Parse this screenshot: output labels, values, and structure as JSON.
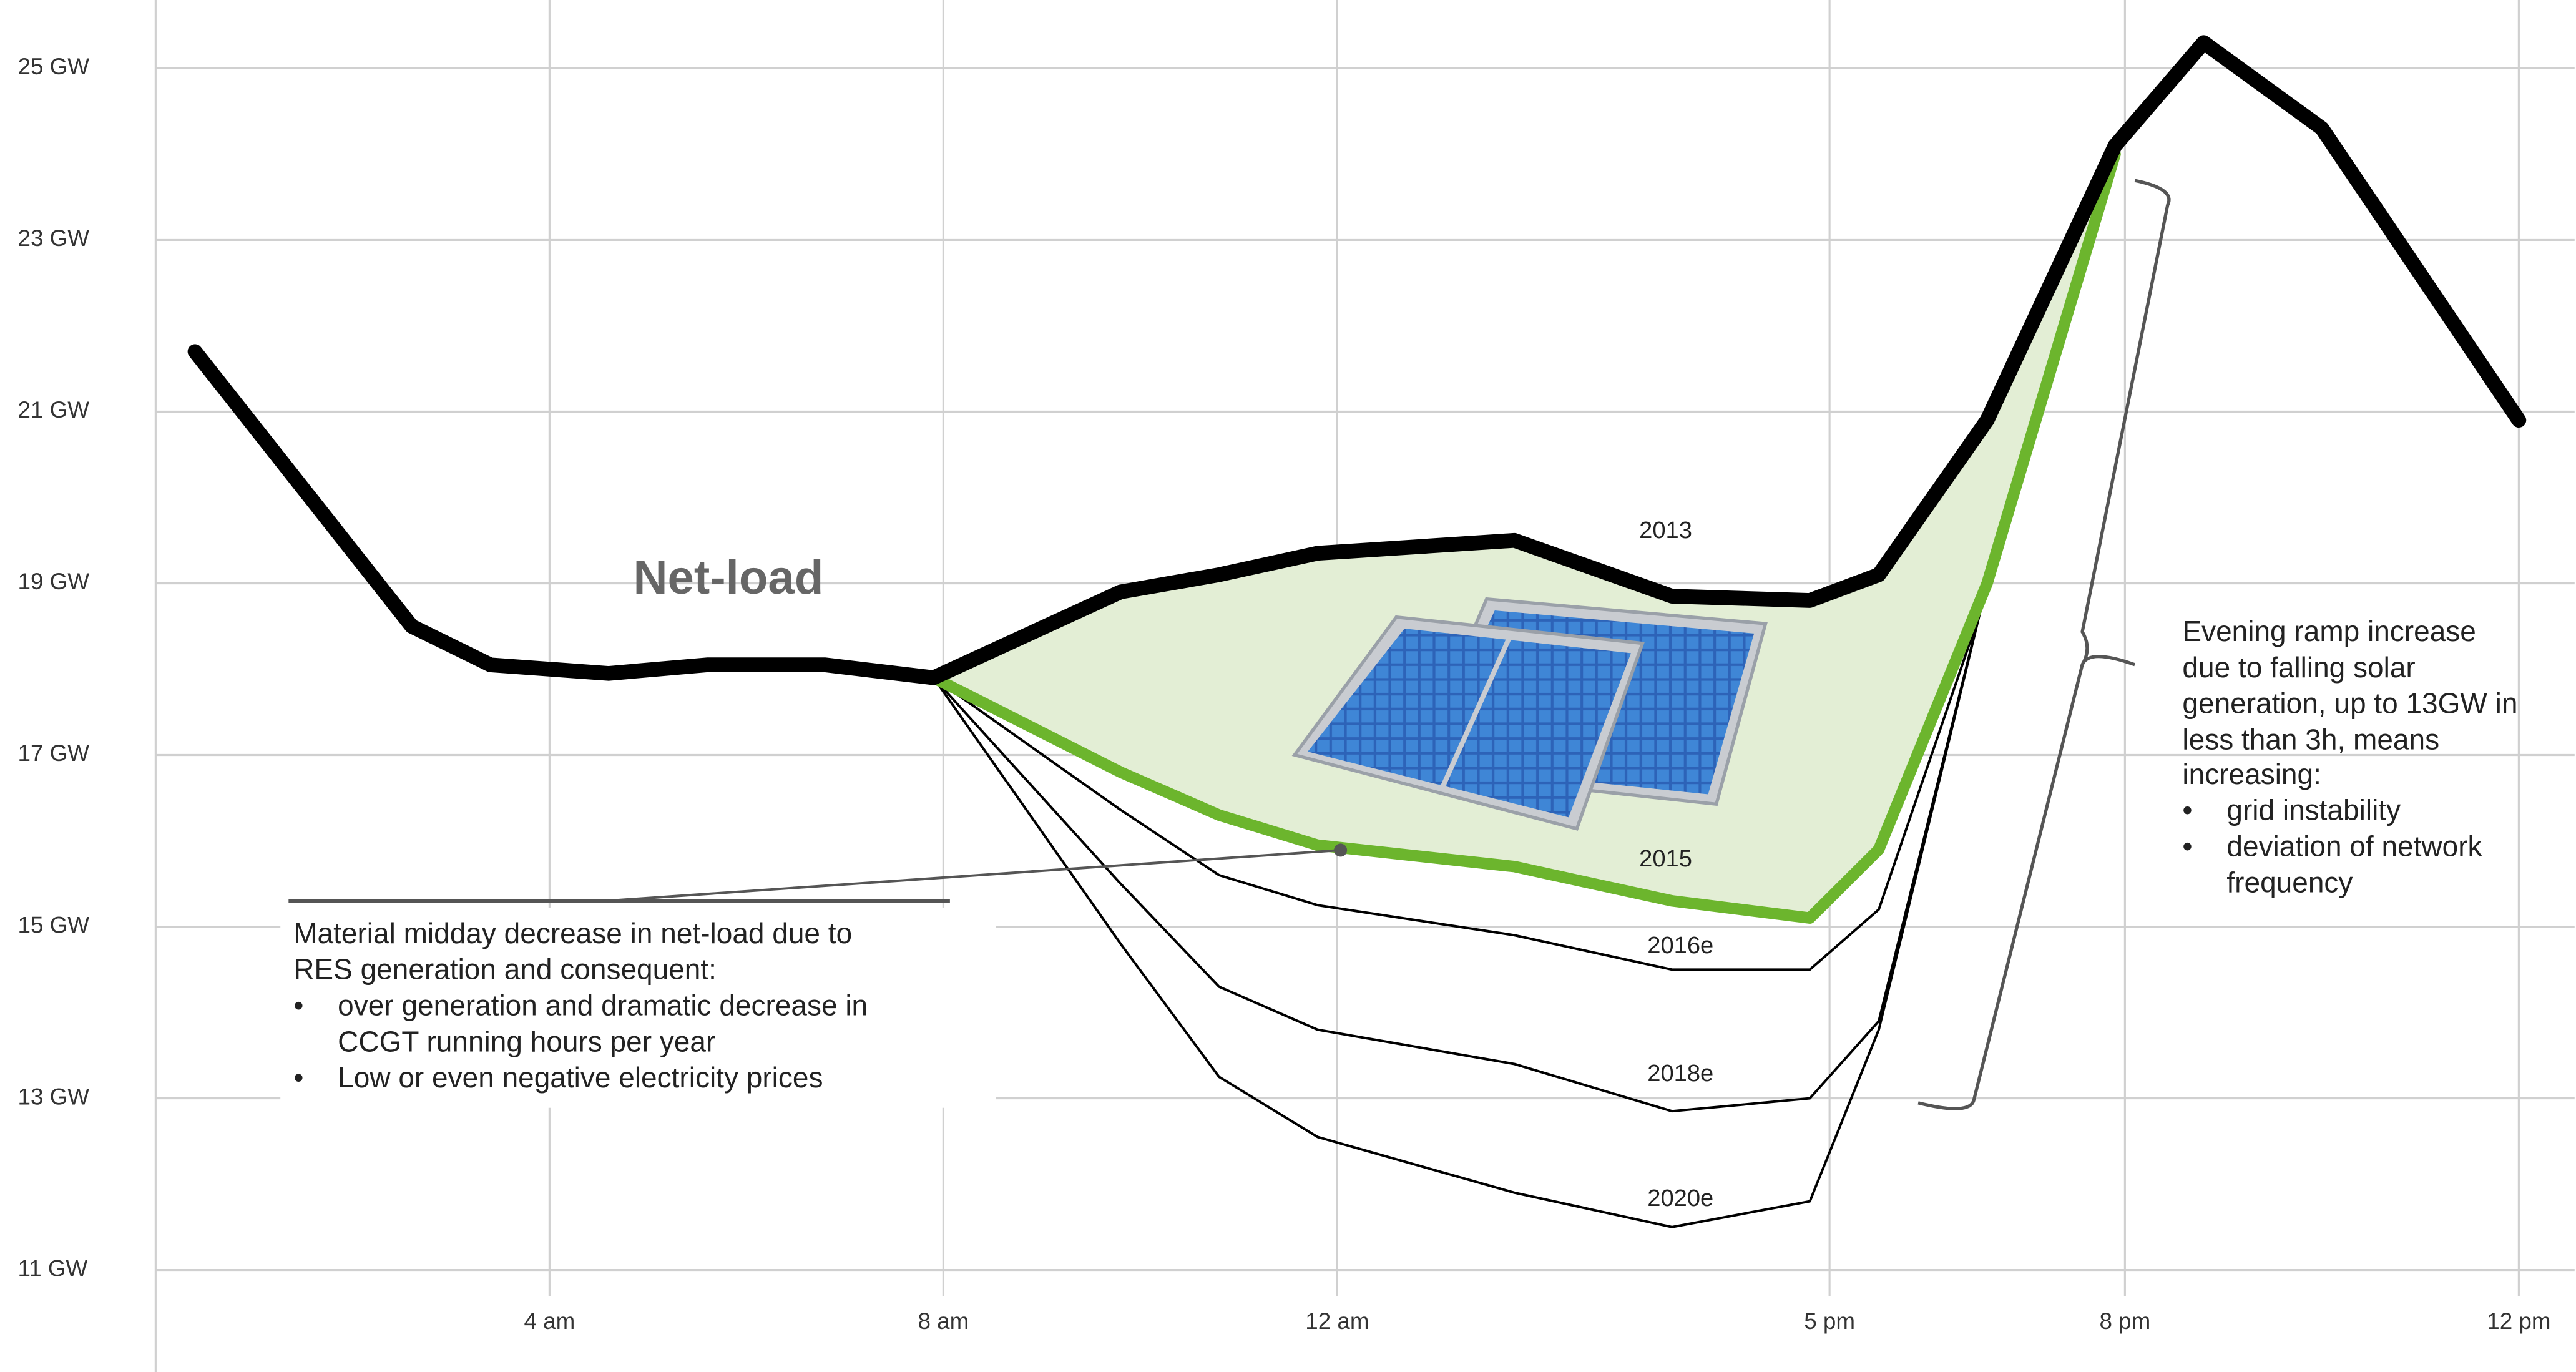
{
  "chart_data": {
    "type": "line",
    "x": [
      0.4,
      2.6,
      3.4,
      4.6,
      5.6,
      6.8,
      7.9,
      9.8,
      10.8,
      11.8,
      13.8,
      15.4,
      16.8,
      17.5,
      18.6,
      19.9,
      20.8,
      22,
      24
    ],
    "series": [
      {
        "name": "2013",
        "color": "#000000",
        "values": [
          21.7,
          18.5,
          18.05,
          17.95,
          18.05,
          18.05,
          17.9,
          18.9,
          19.1,
          19.35,
          19.5,
          18.85,
          18.8,
          19.1,
          20.9,
          24.1,
          25.3,
          24.3,
          20.9
        ]
      },
      {
        "name": "2015",
        "color": "#6cb52d",
        "values": [
          null,
          null,
          null,
          null,
          null,
          null,
          17.9,
          16.8,
          16.3,
          15.95,
          15.7,
          15.3,
          15.1,
          15.9,
          19.0,
          24.0,
          null,
          null,
          null
        ]
      },
      {
        "name": "2016e",
        "color": "#000000",
        "values": [
          null,
          null,
          null,
          null,
          null,
          null,
          17.9,
          16.36,
          15.6,
          15.25,
          14.9,
          14.5,
          14.5,
          15.2,
          18.9,
          null,
          null,
          null,
          null
        ]
      },
      {
        "name": "2018e",
        "color": "#000000",
        "values": [
          null,
          null,
          null,
          null,
          null,
          null,
          17.9,
          15.5,
          14.3,
          13.8,
          13.4,
          12.85,
          13.0,
          13.9,
          19.0,
          null,
          null,
          null,
          null
        ]
      },
      {
        "name": "2020e",
        "color": "#000000",
        "values": [
          null,
          null,
          null,
          null,
          null,
          null,
          17.9,
          14.8,
          13.25,
          12.55,
          11.9,
          11.5,
          11.8,
          13.8,
          19.0,
          null,
          null,
          null,
          null
        ]
      }
    ],
    "fill_between_color": "#e3eed5",
    "xlim": [
      0,
      24.5
    ],
    "xticks": [
      {
        "value": 4,
        "label": "4 am"
      },
      {
        "value": 8,
        "label": "8 am"
      },
      {
        "value": 12,
        "label": "12 am"
      },
      {
        "value": 17,
        "label": "5 pm"
      },
      {
        "value": 20,
        "label": "8 pm"
      },
      {
        "value": 24,
        "label": "12 pm"
      }
    ],
    "ylim": [
      10.5,
      25.7
    ],
    "yticks": [
      {
        "value": 11,
        "label": "11 GW"
      },
      {
        "value": 13,
        "label": "13 GW"
      },
      {
        "value": 15,
        "label": "15 GW"
      },
      {
        "value": 17,
        "label": "17 GW"
      },
      {
        "value": 19,
        "label": "19 GW"
      },
      {
        "value": 21,
        "label": "21 GW"
      },
      {
        "value": 23,
        "label": "23 GW"
      },
      {
        "value": 25,
        "label": "25 GW"
      }
    ],
    "grid": true,
    "annotations": {
      "net_load": "Net-load",
      "midday_note": [
        "Material midday decrease in net-load due to",
        "RES generation and consequent:",
        "•",
        "over generation and dramatic decrease in",
        "CCGT running hours per year",
        "•",
        "Low or even negative electricity prices"
      ],
      "evening_note": [
        "Evening ramp increase",
        "due to falling solar",
        "generation, up to 13GW in",
        "less than 3h, means",
        "increasing:",
        "•",
        "grid instability",
        "•",
        "deviation of network",
        "frequency"
      ]
    }
  }
}
